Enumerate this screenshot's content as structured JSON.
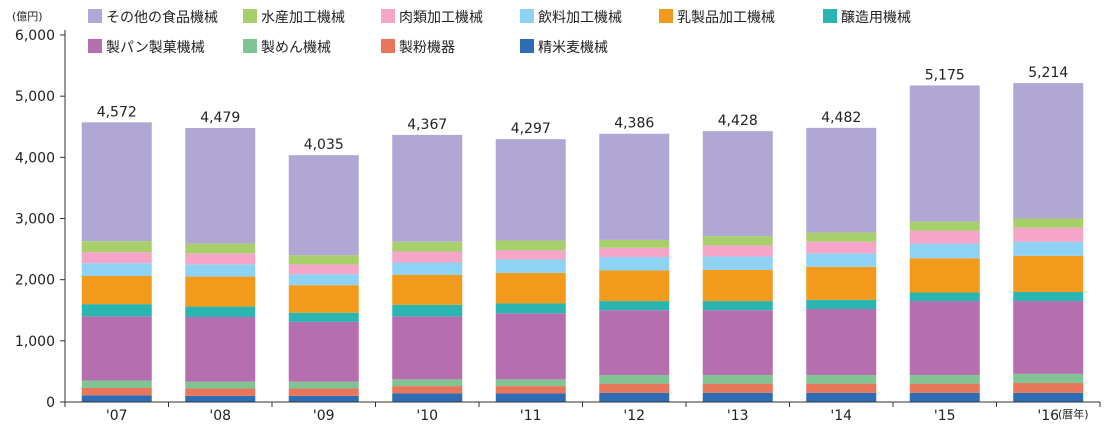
{
  "chart_data": {
    "type": "bar",
    "stacked": true,
    "y_unit": "(億円)",
    "x_unit": "(暦年)",
    "categories": [
      "'07",
      "'08",
      "'09",
      "'10",
      "'11",
      "'12",
      "'13",
      "'14",
      "'15",
      "'16"
    ],
    "totals": [
      4572,
      4479,
      4035,
      4367,
      4297,
      4386,
      4428,
      4482,
      5175,
      5214
    ],
    "total_labels": [
      "4,572",
      "4,479",
      "4,035",
      "4,367",
      "4,297",
      "4,386",
      "4,428",
      "4,482",
      "5,175",
      "5,214"
    ],
    "ylim": [
      0,
      6000
    ],
    "yticks": [
      0,
      1000,
      2000,
      3000,
      4000,
      5000,
      6000
    ],
    "ytick_labels": [
      "0",
      "1,000",
      "2,000",
      "3,000",
      "4,000",
      "5,000",
      "6,000"
    ],
    "grid": false,
    "legend_position": "top",
    "series": [
      {
        "name": "精米麦機械",
        "color": "#2e6db4",
        "values": [
          110,
          100,
          100,
          140,
          140,
          150,
          150,
          150,
          150,
          150
        ]
      },
      {
        "name": "製粉機器",
        "color": "#e8765a",
        "values": [
          120,
          120,
          120,
          120,
          120,
          150,
          150,
          150,
          150,
          160
        ]
      },
      {
        "name": "製めん機械",
        "color": "#7fc492",
        "values": [
          120,
          110,
          110,
          110,
          110,
          140,
          140,
          140,
          140,
          150
        ]
      },
      {
        "name": "製パン製菓機械",
        "color": "#b56fae",
        "values": [
          1050,
          1060,
          980,
          1030,
          1080,
          1060,
          1060,
          1080,
          1210,
          1190
        ]
      },
      {
        "name": "醸造用機械",
        "color": "#2bb5b0",
        "values": [
          200,
          170,
          150,
          190,
          160,
          150,
          150,
          150,
          140,
          150
        ]
      },
      {
        "name": "乳製品加工機械",
        "color": "#f29a1b",
        "values": [
          460,
          490,
          450,
          490,
          500,
          500,
          510,
          540,
          560,
          590
        ]
      },
      {
        "name": "飲料加工機械",
        "color": "#8fd3f4",
        "values": [
          210,
          200,
          180,
          200,
          220,
          220,
          220,
          220,
          240,
          230
        ]
      },
      {
        "name": "肉類加工機械",
        "color": "#f5a6c8",
        "values": [
          180,
          180,
          160,
          180,
          150,
          150,
          180,
          190,
          210,
          230
        ]
      },
      {
        "name": "水産加工機械",
        "color": "#a8d06a",
        "values": [
          180,
          160,
          150,
          160,
          160,
          130,
          150,
          150,
          150,
          150
        ]
      },
      {
        "name": "その他の食品機械",
        "color": "#b1a7d4",
        "values": [
          1942,
          1889,
          1635,
          1747,
          1657,
          1736,
          1718,
          1712,
          2225,
          2214
        ]
      }
    ]
  }
}
